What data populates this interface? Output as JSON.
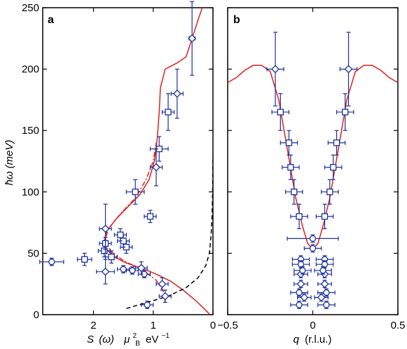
{
  "chart_data": [
    {
      "panel": "a",
      "type": "scatter",
      "panel_label": "a",
      "ylabel": "ħω (meV)",
      "xlabel_parts": {
        "s": "S",
        "omega": "(ω)",
        "mu": "μ",
        "sub": "B",
        "sup": "2",
        "unit": "eV",
        "unit_sup": "−1"
      },
      "xlim": [
        2.85,
        0
      ],
      "ylim": [
        0,
        250
      ],
      "xticks": [
        2,
        1,
        0
      ],
      "xtick_labels": [
        "2",
        "1",
        "0"
      ],
      "yticks": [
        0,
        50,
        100,
        150,
        200,
        250
      ],
      "ytick_labels": [
        "0",
        "50",
        "100",
        "150",
        "200",
        "250"
      ],
      "colors": {
        "points": "#1a2f9c",
        "model": "#e02020",
        "dashed": "#000000"
      },
      "series": [
        {
          "marker": "square",
          "points": [
            {
              "x": 2.15,
              "y": 45,
              "xerr": 0.12,
              "yerr": 5
            },
            {
              "x": 1.7,
              "y": 47,
              "xerr": 0.1,
              "yerr": 5
            },
            {
              "x": 1.82,
              "y": 52,
              "xerr": 0.1,
              "yerr": 5
            },
            {
              "x": 1.45,
              "y": 55,
              "xerr": 0.1,
              "yerr": 5
            },
            {
              "x": 1.8,
              "y": 58,
              "xerr": 0.1,
              "yerr": 5
            },
            {
              "x": 1.5,
              "y": 60,
              "xerr": 0.1,
              "yerr": 5
            },
            {
              "x": 1.55,
              "y": 65,
              "xerr": 0.1,
              "yerr": 5
            },
            {
              "x": 1.05,
              "y": 80,
              "xerr": 0.1,
              "yerr": 5
            },
            {
              "x": 1.3,
              "y": 100,
              "xerr": 0.15,
              "yerr": 10
            },
            {
              "x": 0.9,
              "y": 135,
              "xerr": 0.15,
              "yerr": 10
            },
            {
              "x": 0.75,
              "y": 165,
              "xerr": 0.1,
              "yerr": 15
            }
          ]
        },
        {
          "marker": "circle",
          "points": [
            {
              "x": 2.7,
              "y": 43,
              "xerr": 0.2,
              "yerr": 3
            },
            {
              "x": 1.5,
              "y": 37,
              "xerr": 0.1,
              "yerr": 3
            },
            {
              "x": 1.35,
              "y": 36,
              "xerr": 0.1,
              "yerr": 3
            },
            {
              "x": 1.15,
              "y": 33,
              "xerr": 0.1,
              "yerr": 3
            },
            {
              "x": 1.1,
              "y": 8,
              "xerr": 0.1,
              "yerr": 3
            }
          ]
        },
        {
          "marker": "diamond",
          "points": [
            {
              "x": 1.8,
              "y": 70,
              "xerr": 0.1,
              "yerr": 20
            },
            {
              "x": 1.8,
              "y": 35,
              "xerr": 0.15,
              "yerr": 10
            },
            {
              "x": 1.2,
              "y": 38,
              "xerr": 0.1,
              "yerr": 5
            },
            {
              "x": 0.85,
              "y": 25,
              "xerr": 0.1,
              "yerr": 5
            },
            {
              "x": 0.8,
              "y": 15,
              "xerr": 0.1,
              "yerr": 5
            },
            {
              "x": 0.95,
              "y": 120,
              "xerr": 0.1,
              "yerr": 15
            },
            {
              "x": 0.6,
              "y": 180,
              "xerr": 0.1,
              "yerr": 20
            },
            {
              "x": 0.35,
              "y": 225,
              "xerr": 0.05,
              "yerr": 30
            }
          ]
        }
      ],
      "lines": [
        {
          "style": "solid",
          "points": [
            [
              0.05,
              0
            ],
            [
              0.15,
              5
            ],
            [
              0.3,
              12
            ],
            [
              0.5,
              20
            ],
            [
              0.7,
              27
            ],
            [
              0.95,
              33
            ],
            [
              1.2,
              38
            ],
            [
              1.45,
              42
            ],
            [
              1.65,
              47
            ],
            [
              1.78,
              53
            ],
            [
              1.82,
              60
            ],
            [
              1.78,
              68
            ],
            [
              1.62,
              78
            ],
            [
              1.42,
              88
            ],
            [
              1.22,
              98
            ],
            [
              1.07,
              110
            ],
            [
              0.98,
              125
            ],
            [
              0.93,
              145
            ],
            [
              0.9,
              165
            ],
            [
              0.88,
              185
            ],
            [
              0.8,
              200
            ],
            [
              0.6,
              205
            ],
            [
              0.45,
              210
            ],
            [
              0.35,
              225
            ],
            [
              0.25,
              240
            ],
            [
              0.18,
              250
            ]
          ]
        },
        {
          "style": "dashdot",
          "points": [
            [
              0.8,
              10
            ],
            [
              0.82,
              18
            ],
            [
              0.95,
              28
            ],
            [
              1.2,
              37
            ],
            [
              1.5,
              44
            ],
            [
              1.72,
              52
            ],
            [
              1.8,
              62
            ],
            [
              1.75,
              70
            ],
            [
              1.55,
              82
            ],
            [
              1.3,
              95
            ],
            [
              1.12,
              110
            ],
            [
              1.0,
              125
            ],
            [
              0.95,
              140
            ]
          ]
        },
        {
          "style": "dashed",
          "points": [
            [
              1.45,
              5
            ],
            [
              1.1,
              10
            ],
            [
              0.75,
              15
            ],
            [
              0.45,
              22
            ],
            [
              0.25,
              30
            ],
            [
              0.12,
              40
            ],
            [
              0.06,
              50
            ],
            [
              0.03,
              65
            ],
            [
              0.015,
              80
            ],
            [
              0.006,
              100
            ],
            [
              0.002,
              120
            ],
            [
              0,
              130
            ]
          ]
        }
      ]
    },
    {
      "panel": "b",
      "type": "scatter",
      "panel_label": "b",
      "xlabel_parts": {
        "q": "q",
        "unit": "(r.l.u.)"
      },
      "xlim": [
        -0.5,
        0.5
      ],
      "ylim": [
        0,
        250
      ],
      "xticks": [
        -0.5,
        0,
        0.5
      ],
      "xtick_labels": [
        "−0.5",
        "0",
        "0.5"
      ],
      "colors": {
        "points": "#1a2f9c",
        "model": "#e02020"
      },
      "series": [
        {
          "marker": "square",
          "points": [
            {
              "x": -0.19,
              "y": 165,
              "xerr": 0.05,
              "yerr": 15
            },
            {
              "x": 0.19,
              "y": 165,
              "xerr": 0.05,
              "yerr": 15
            },
            {
              "x": -0.14,
              "y": 140,
              "xerr": 0.05,
              "yerr": 10
            },
            {
              "x": 0.14,
              "y": 140,
              "xerr": 0.05,
              "yerr": 10
            },
            {
              "x": -0.13,
              "y": 120,
              "xerr": 0.05,
              "yerr": 10
            },
            {
              "x": 0.12,
              "y": 120,
              "xerr": 0.05,
              "yerr": 10
            },
            {
              "x": -0.11,
              "y": 100,
              "xerr": 0.05,
              "yerr": 10
            },
            {
              "x": 0.1,
              "y": 100,
              "xerr": 0.05,
              "yerr": 10
            },
            {
              "x": -0.08,
              "y": 80,
              "xerr": 0.05,
              "yerr": 10
            },
            {
              "x": 0.07,
              "y": 80,
              "xerr": 0.05,
              "yerr": 10
            }
          ]
        },
        {
          "marker": "diamond",
          "points": [
            {
              "x": -0.22,
              "y": 200,
              "xerr": 0.05,
              "yerr": 30
            },
            {
              "x": 0.21,
              "y": 200,
              "xerr": 0.05,
              "yerr": 30
            },
            {
              "x": -0.07,
              "y": 33,
              "xerr": 0.04,
              "yerr": 3
            },
            {
              "x": 0.07,
              "y": 33,
              "xerr": 0.04,
              "yerr": 3
            },
            {
              "x": -0.07,
              "y": 25,
              "xerr": 0.04,
              "yerr": 3
            },
            {
              "x": 0.07,
              "y": 25,
              "xerr": 0.04,
              "yerr": 3
            },
            {
              "x": -0.05,
              "y": 14,
              "xerr": 0.04,
              "yerr": 3
            },
            {
              "x": 0.05,
              "y": 14,
              "xerr": 0.04,
              "yerr": 3
            }
          ]
        },
        {
          "marker": "circle",
          "points": [
            {
              "x": 0,
              "y": 62,
              "xerr": 0.15,
              "yerr": 3
            },
            {
              "x": 0,
              "y": 54,
              "xerr": 0.05,
              "yerr": 3
            },
            {
              "x": -0.07,
              "y": 45,
              "xerr": 0.05,
              "yerr": 3
            },
            {
              "x": 0.07,
              "y": 45,
              "xerr": 0.05,
              "yerr": 3
            },
            {
              "x": -0.07,
              "y": 41,
              "xerr": 0.05,
              "yerr": 3
            },
            {
              "x": 0.07,
              "y": 41,
              "xerr": 0.05,
              "yerr": 3
            },
            {
              "x": -0.06,
              "y": 36,
              "xerr": 0.05,
              "yerr": 3
            },
            {
              "x": 0.06,
              "y": 36,
              "xerr": 0.05,
              "yerr": 3
            },
            {
              "x": -0.08,
              "y": 18,
              "xerr": 0.05,
              "yerr": 3
            },
            {
              "x": 0.08,
              "y": 18,
              "xerr": 0.05,
              "yerr": 3
            },
            {
              "x": -0.08,
              "y": 8,
              "xerr": 0.05,
              "yerr": 3
            },
            {
              "x": 0.08,
              "y": 8,
              "xerr": 0.05,
              "yerr": 3
            }
          ]
        }
      ],
      "lines": [
        {
          "style": "solid",
          "points": [
            [
              -0.5,
              189
            ],
            [
              -0.45,
              193
            ],
            [
              -0.4,
              199
            ],
            [
              -0.35,
              203
            ],
            [
              -0.3,
              203
            ],
            [
              -0.25,
              198
            ],
            [
              -0.2,
              175
            ],
            [
              -0.15,
              135
            ],
            [
              -0.1,
              95
            ],
            [
              -0.06,
              72
            ],
            [
              -0.03,
              58
            ],
            [
              0,
              53
            ],
            [
              0.03,
              58
            ],
            [
              0.06,
              72
            ],
            [
              0.1,
              95
            ],
            [
              0.15,
              135
            ],
            [
              0.2,
              175
            ],
            [
              0.25,
              198
            ],
            [
              0.3,
              203
            ],
            [
              0.35,
              203
            ],
            [
              0.4,
              199
            ],
            [
              0.45,
              193
            ],
            [
              0.5,
              189
            ]
          ]
        }
      ]
    }
  ]
}
